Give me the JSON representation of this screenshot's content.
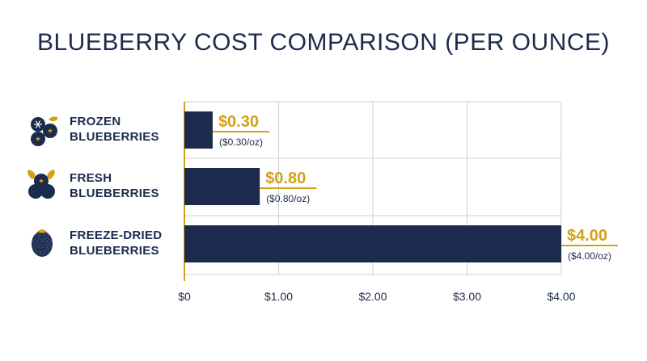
{
  "title": "BLUEBERRY COST COMPARISON (PER OUNCE)",
  "colors": {
    "bar": "#1c2b4d",
    "accent": "#d4a017",
    "grid": "#cfcfcf",
    "text": "#1c2b4d"
  },
  "icons": [
    "frozen-blueberries-icon",
    "fresh-blueberries-icon",
    "freeze-dried-blueberries-icon"
  ],
  "chart_data": {
    "type": "bar",
    "orientation": "horizontal",
    "title": "BLUEBERRY COST COMPARISON (PER OUNCE)",
    "categories": [
      [
        "FROZEN",
        "BLUEBERRIES"
      ],
      [
        "FRESH",
        "BLUEBERRIES"
      ],
      [
        "FREEZE-DRIED",
        "BLUEBERRIES"
      ]
    ],
    "values": [
      0.3,
      0.8,
      4.0
    ],
    "value_labels": [
      "$0.30",
      "$0.80",
      "$4.00"
    ],
    "sub_labels": [
      "($0.30/oz)",
      "($0.80/oz)",
      "($4.00/oz)"
    ],
    "xlim": [
      0,
      4.0
    ],
    "xticks": [
      0,
      1,
      2,
      3,
      4
    ],
    "xtick_labels": [
      "$0",
      "$1.00",
      "$2.00",
      "$3.00",
      "$4.00"
    ],
    "grid": true
  }
}
